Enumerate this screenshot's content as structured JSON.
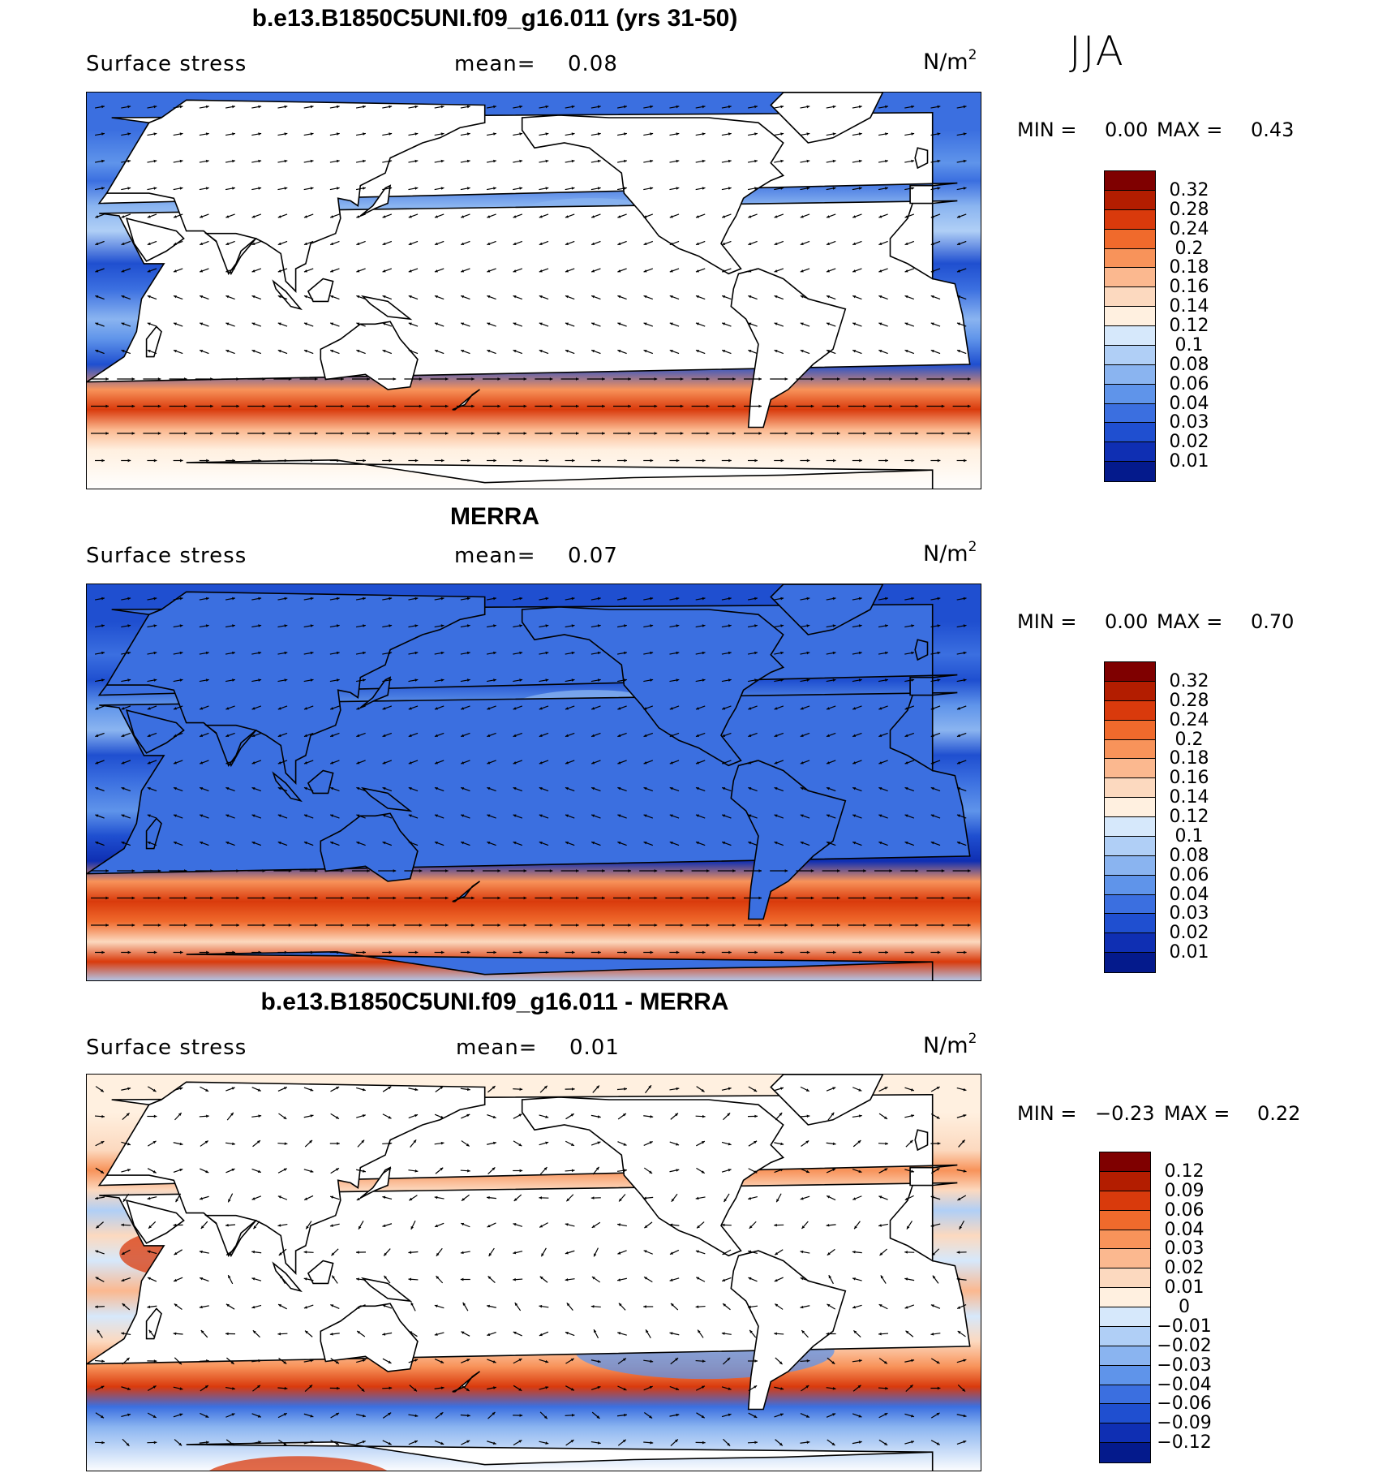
{
  "season": "JJA",
  "unit_base": "N/m",
  "unit_exp": "2",
  "panels": [
    {
      "title": "b.e13.B1850C5UNI.f09_g16.011 (yrs 31-50)",
      "variable": "Surface stress",
      "mean_label": "mean=",
      "mean_value": "0.08",
      "min_label": "MIN =",
      "min_value": "0.00",
      "max_label": "MAX =",
      "max_value": "0.43",
      "field_kind": "model",
      "colorbar": {
        "colors": [
          "#7f0000",
          "#b31d00",
          "#d93a0c",
          "#f06a2c",
          "#f8935a",
          "#fbb88f",
          "#fcd9bf",
          "#fff0e0",
          "#d6e8fb",
          "#b0cff6",
          "#8ab4f0",
          "#5f94ea",
          "#3b6fe0",
          "#1f4fd0",
          "#0f2fb3",
          "#041a8c"
        ],
        "labels": [
          "0.32",
          "0.28",
          "0.24",
          "0.2",
          "0.18",
          "0.16",
          "0.14",
          "0.12",
          "0.1",
          "0.08",
          "0.06",
          "0.04",
          "0.03",
          "0.02",
          "0.01"
        ]
      }
    },
    {
      "title": "MERRA",
      "variable": "Surface stress",
      "mean_label": "mean=",
      "mean_value": "0.07",
      "min_label": "MIN =",
      "min_value": "0.00",
      "max_label": "MAX =",
      "max_value": "0.70",
      "field_kind": "obs",
      "colorbar": {
        "colors": [
          "#7f0000",
          "#b31d00",
          "#d93a0c",
          "#f06a2c",
          "#f8935a",
          "#fbb88f",
          "#fcd9bf",
          "#fff0e0",
          "#d6e8fb",
          "#b0cff6",
          "#8ab4f0",
          "#5f94ea",
          "#3b6fe0",
          "#1f4fd0",
          "#0f2fb3",
          "#041a8c"
        ],
        "labels": [
          "0.32",
          "0.28",
          "0.24",
          "0.2",
          "0.18",
          "0.16",
          "0.14",
          "0.12",
          "0.1",
          "0.08",
          "0.06",
          "0.04",
          "0.03",
          "0.02",
          "0.01"
        ]
      }
    },
    {
      "title": "b.e13.B1850C5UNI.f09_g16.011 - MERRA",
      "variable": "Surface stress",
      "mean_label": "mean=",
      "mean_value": "0.01",
      "min_label": "MIN =",
      "min_value": "−0.23",
      "max_label": "MAX =",
      "max_value": "0.22",
      "field_kind": "diff",
      "colorbar": {
        "colors": [
          "#7f0000",
          "#b31d00",
          "#d93a0c",
          "#f06a2c",
          "#f8935a",
          "#fbb88f",
          "#fcd9bf",
          "#fff0e0",
          "#d6e8fb",
          "#b0cff6",
          "#8ab4f0",
          "#5f94ea",
          "#3b6fe0",
          "#1f4fd0",
          "#0f2fb3",
          "#041a8c"
        ],
        "labels": [
          "0.12",
          "0.09",
          "0.06",
          "0.04",
          "0.03",
          "0.02",
          "0.01",
          "0",
          "−0.01",
          "−0.02",
          "−0.03",
          "−0.04",
          "−0.06",
          "−0.09",
          "−0.12"
        ]
      }
    }
  ]
}
